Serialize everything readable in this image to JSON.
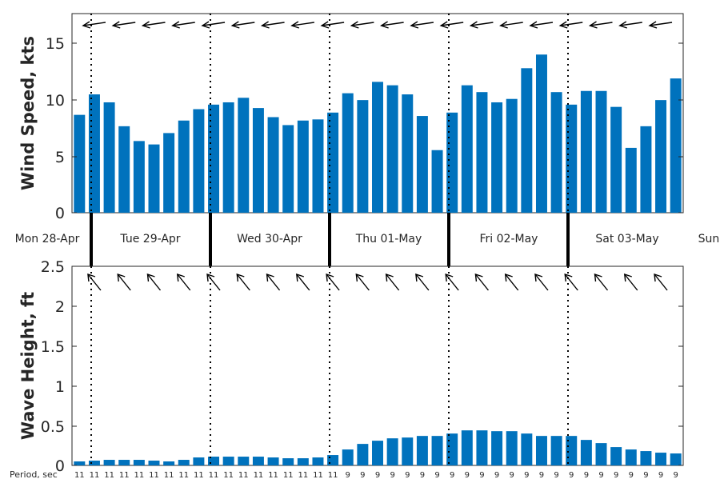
{
  "chart_data": [
    {
      "type": "bar",
      "ylabel": "Wind Speed, kts",
      "ylim": [
        0,
        17.5
      ],
      "yticks": [
        "0",
        "5",
        "10",
        "15"
      ],
      "values": [
        8.6,
        10.4,
        9.7,
        7.6,
        6.3,
        6.0,
        7.0,
        8.1,
        9.1,
        9.5,
        9.7,
        10.1,
        9.2,
        8.4,
        7.7,
        8.1,
        8.2,
        8.8,
        10.5,
        9.9,
        11.5,
        11.2,
        10.4,
        8.5,
        5.5,
        8.8,
        11.2,
        10.6,
        9.7,
        10.0,
        12.7,
        13.9,
        10.6,
        9.5,
        10.7,
        10.7,
        9.3,
        5.7,
        7.6,
        9.9,
        11.8
      ],
      "direction_arrows": "wind from east (arrows pointing west)",
      "grid": false
    },
    {
      "type": "bar",
      "ylabel": "Wave Height, ft",
      "ylim": [
        0,
        2.5
      ],
      "yticks": [
        "0",
        "0.5",
        "1",
        "1.5",
        "2",
        "2.5"
      ],
      "values": [
        0.05,
        0.06,
        0.07,
        0.07,
        0.07,
        0.06,
        0.05,
        0.07,
        0.1,
        0.11,
        0.11,
        0.11,
        0.11,
        0.1,
        0.09,
        0.09,
        0.1,
        0.13,
        0.2,
        0.27,
        0.31,
        0.34,
        0.35,
        0.37,
        0.37,
        0.4,
        0.44,
        0.44,
        0.43,
        0.43,
        0.4,
        0.37,
        0.37,
        0.37,
        0.32,
        0.28,
        0.23,
        0.2,
        0.18,
        0.16,
        0.15
      ],
      "direction_arrows": "waves from southeast (arrows pointing northwest)",
      "grid": false
    }
  ],
  "days": [
    "Mon 28-Apr",
    "Tue 29-Apr",
    "Wed 30-Apr",
    "Thu 01-May",
    "Fri 02-May",
    "Sat 03-May",
    "Sun"
  ],
  "period": {
    "label": "Period, sec",
    "values": [
      "11",
      "11",
      "11",
      "11",
      "11",
      "11",
      "11",
      "11",
      "11",
      "11",
      "11",
      "11",
      "11",
      "11",
      "11",
      "11",
      "11",
      "11",
      "9",
      "9",
      "9",
      "9",
      "9",
      "9",
      "9",
      "9",
      "9",
      "9",
      "9",
      "9",
      "9",
      "9",
      "9",
      "9",
      "9",
      "9",
      "9",
      "9",
      "9",
      "9",
      "9"
    ]
  },
  "colors": {
    "bar": "#0072bd",
    "axis": "#262626",
    "text": "#262626"
  }
}
